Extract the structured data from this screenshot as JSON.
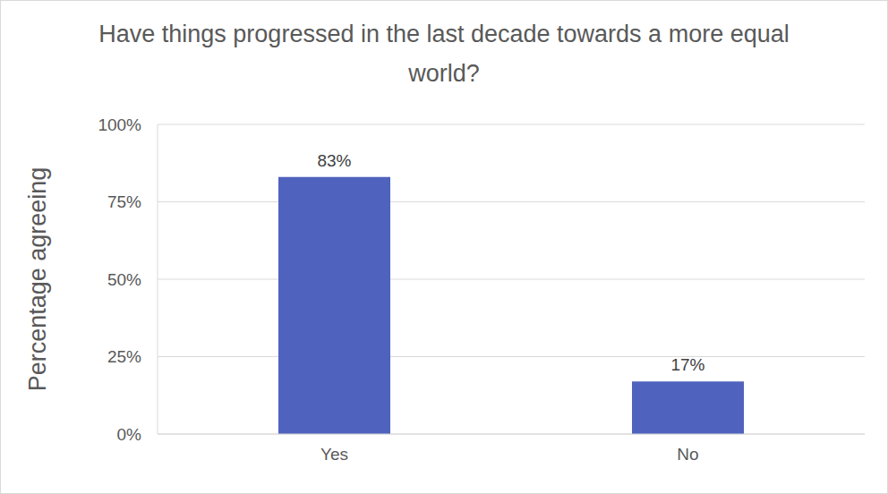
{
  "chart_data": {
    "type": "bar",
    "title": "Have things progressed in the last decade towards a more equal world?",
    "y_label": "Percentage agreeing",
    "categories": [
      "Yes",
      "No"
    ],
    "values": [
      83,
      17
    ],
    "value_labels": [
      "83%",
      "17%"
    ],
    "color": "#4f62be",
    "ylim": [
      0,
      100
    ],
    "yticks": [
      {
        "value": 0,
        "label": "0%"
      },
      {
        "value": 25,
        "label": "25%"
      },
      {
        "value": 50,
        "label": "50%"
      },
      {
        "value": 75,
        "label": "75%"
      },
      {
        "value": 100,
        "label": "100%"
      }
    ],
    "grid": true,
    "data_labels": true
  }
}
